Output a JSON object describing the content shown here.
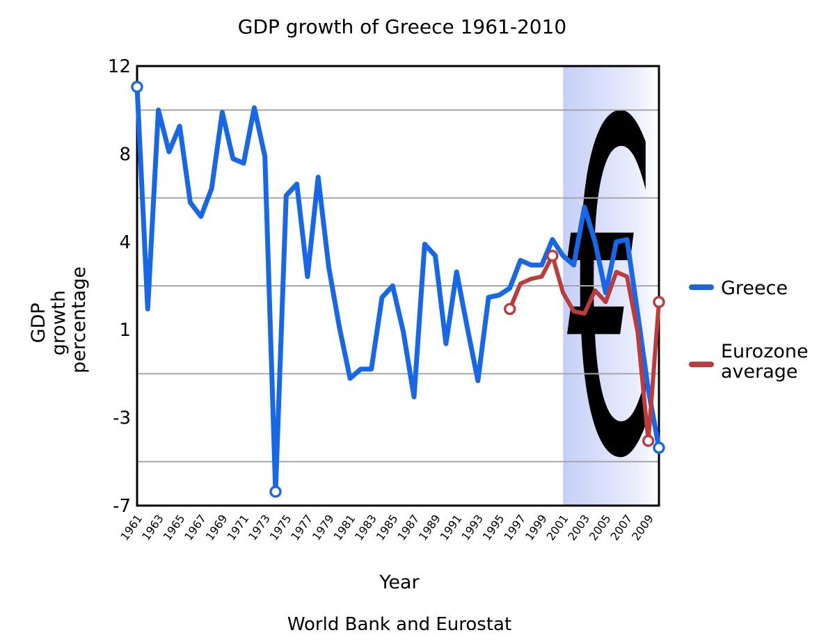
{
  "title": "GDP growth of Greece 1961-2010",
  "x_axis": {
    "label": "Year",
    "tick_years": [
      1961,
      1963,
      1965,
      1967,
      1969,
      1971,
      1973,
      1975,
      1977,
      1979,
      1981,
      1983,
      1985,
      1987,
      1989,
      1991,
      1993,
      1995,
      1997,
      1999,
      2001,
      2003,
      2005,
      2007,
      2009
    ]
  },
  "y_axis": {
    "label_line1": "GDP",
    "label_line2": "growth",
    "label_line3": "percentage",
    "tick_labels": [
      "12",
      "8",
      "4",
      "1",
      "-3",
      "-7"
    ]
  },
  "source": "World Bank and Eurostat",
  "watermark": "€",
  "legend": {
    "greece": {
      "label": "Greece",
      "color": "#1668e8"
    },
    "eurozone": {
      "label_line1": "Eurozone",
      "label_line2": "average",
      "color": "#bd3b3b"
    }
  },
  "colors": {
    "greece_line": "#1668e8",
    "eurozone_line": "#bd3b3b",
    "gridline": "#a6a6a6",
    "axis_border": "#000000",
    "euro_band_start": "#c5cff7",
    "euro_band_end": "#ffffff",
    "watermark_fill": "#ffffff"
  },
  "chart_data": {
    "type": "line",
    "title": "GDP growth of Greece 1961-2010",
    "xlabel": "Year",
    "ylabel": "GDP growth percentage",
    "source": "World Bank and Eurostat",
    "x_range": [
      1961,
      2010
    ],
    "ylim": [
      -7,
      12
    ],
    "y_tick_values_displayed": [
      12,
      8,
      4,
      1,
      -3,
      -7
    ],
    "grid": "horizontal gridlines between tick labels",
    "legend_position": "right",
    "euro_band": {
      "from_year": 2001,
      "to_year": 2010
    },
    "series": [
      {
        "name": "Greece",
        "color": "#1668e8",
        "start_year": 1996,
        "stroke_width": 7,
        "marker_years": [
          1961,
          1974,
          2010
        ],
        "x": [
          1961,
          1962,
          1963,
          1964,
          1965,
          1966,
          1967,
          1968,
          1969,
          1970,
          1971,
          1972,
          1973,
          1974,
          1975,
          1976,
          1977,
          1978,
          1979,
          1980,
          1981,
          1982,
          1983,
          1984,
          1985,
          1986,
          1987,
          1988,
          1989,
          1990,
          1991,
          1992,
          1993,
          1994,
          1995,
          1996,
          1997,
          1998,
          1999,
          2000,
          2001,
          2002,
          2003,
          2004,
          2005,
          2006,
          2007,
          2008,
          2009,
          2010
        ],
        "values": [
          11.1,
          1.5,
          10.1,
          8.3,
          9.4,
          6.1,
          5.5,
          6.7,
          10.0,
          8.0,
          7.8,
          10.2,
          8.1,
          -6.4,
          6.4,
          6.9,
          2.9,
          7.2,
          3.3,
          0.7,
          -1.5,
          -1.1,
          -1.1,
          2.0,
          2.5,
          0.5,
          -2.3,
          4.3,
          3.8,
          0.0,
          3.1,
          0.7,
          -1.6,
          2.0,
          2.1,
          2.4,
          3.6,
          3.4,
          3.4,
          4.5,
          3.8,
          3.4,
          5.9,
          4.4,
          2.2,
          4.4,
          4.5,
          1.3,
          -2.0,
          -4.5
        ]
      },
      {
        "name": "Eurozone average",
        "color": "#bd3b3b",
        "start_year": 1996,
        "stroke_width": 6,
        "marker_years": [
          1996,
          2000,
          2009,
          2010
        ],
        "x": [
          1996,
          1997,
          1998,
          1999,
          2000,
          2001,
          2002,
          2003,
          2004,
          2005,
          2006,
          2007,
          2008,
          2009,
          2010
        ],
        "values": [
          1.5,
          2.6,
          2.8,
          2.9,
          3.8,
          2.2,
          1.4,
          1.3,
          2.3,
          1.8,
          3.1,
          2.9,
          0.5,
          -4.2,
          1.8
        ]
      }
    ]
  }
}
